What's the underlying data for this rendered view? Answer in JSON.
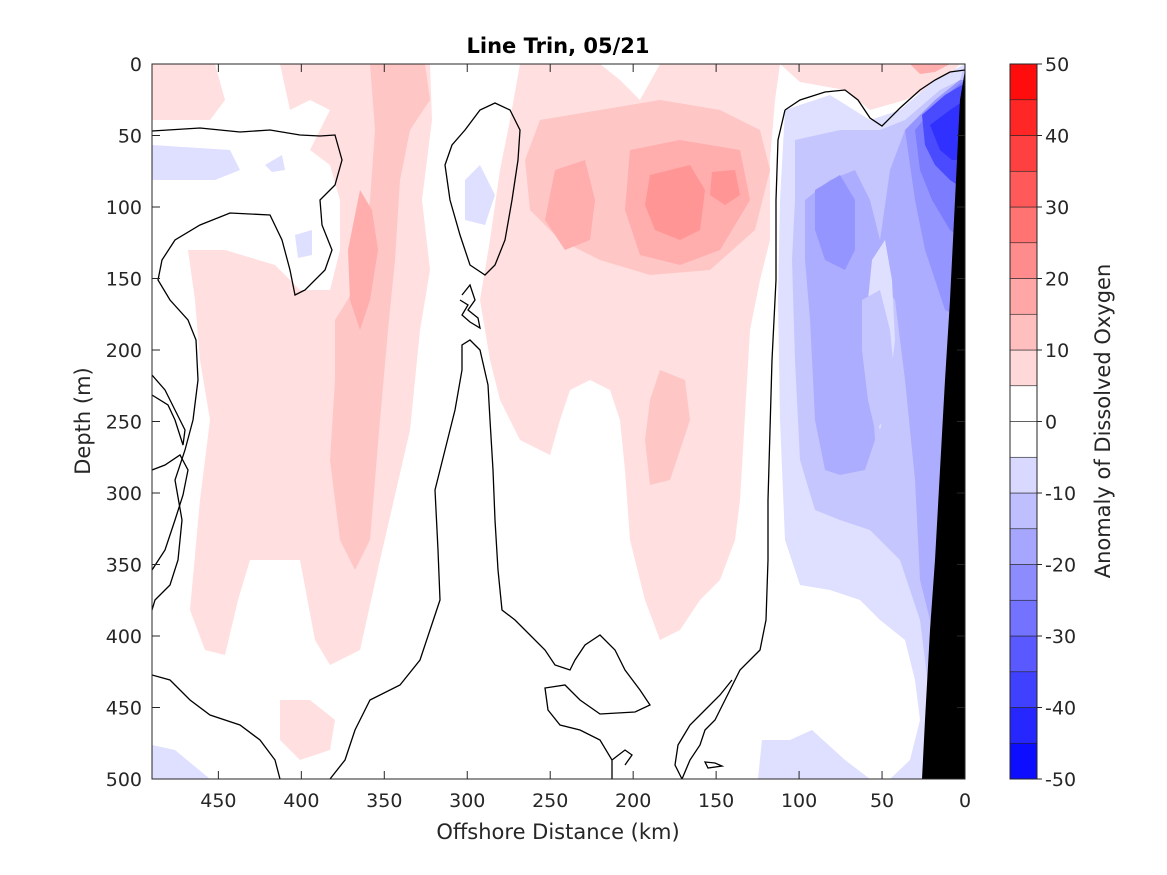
{
  "chart_data": {
    "type": "heatmap",
    "title": "Line Trin, 05/21",
    "xlabel": "Offshore Distance (km)",
    "ylabel": "Depth (m)",
    "x_reversed": true,
    "y_reversed": true,
    "xlim": [
      0,
      490
    ],
    "ylim": [
      0,
      500
    ],
    "x_ticks": [
      450,
      400,
      350,
      300,
      250,
      200,
      150,
      100,
      50,
      0
    ],
    "x_tick_labels": [
      "450",
      "400",
      "350",
      "300",
      "250",
      "200",
      "150",
      "100",
      "50",
      "0"
    ],
    "y_ticks": [
      0,
      50,
      100,
      150,
      200,
      250,
      300,
      350,
      400,
      450,
      500
    ],
    "y_tick_labels": [
      "0",
      "50",
      "100",
      "150",
      "200",
      "250",
      "300",
      "350",
      "400",
      "450",
      "500"
    ],
    "colorbar": {
      "label": "Anomaly of Dissolved Oxygen",
      "range": [
        -50,
        50
      ],
      "step": 5,
      "ticks": [
        50,
        40,
        30,
        20,
        10,
        0,
        -10,
        -20,
        -30,
        -40,
        -50
      ],
      "tick_labels": [
        "50",
        "40",
        "30",
        "20",
        "10",
        "0",
        "-10",
        "-20",
        "-30",
        "-40",
        "-50"
      ]
    },
    "zero_contour": "black line",
    "bathymetry_color": "#000000",
    "features": [
      {
        "kind": "positive",
        "center_x": 175,
        "center_y": 105,
        "value": 25
      },
      {
        "kind": "positive",
        "center_x": 360,
        "center_y": 230,
        "value": 17
      },
      {
        "kind": "negative",
        "center_x": 15,
        "center_y": 50,
        "value": -40
      },
      {
        "kind": "negative",
        "center_x": 75,
        "center_y": 110,
        "value": -25
      }
    ]
  }
}
